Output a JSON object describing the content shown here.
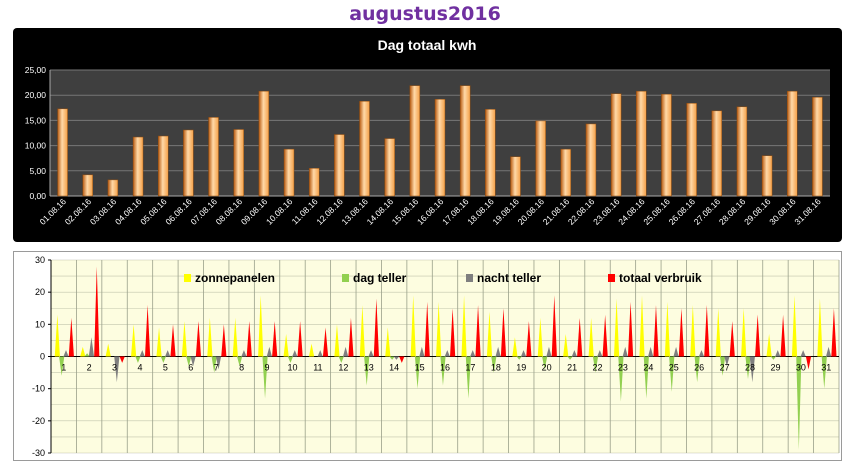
{
  "page": {
    "title": "augustus2016"
  },
  "chart_data": [
    {
      "type": "bar",
      "title": "Dag totaal kwh",
      "categories": [
        "01.08.16",
        "02.08.16",
        "03.08.16",
        "04.08.16",
        "05.08.16",
        "06.08.16",
        "07.08.16",
        "08.08.16",
        "09.08.16",
        "10.08.16",
        "11.08.16",
        "12.08.16",
        "13.08.16",
        "14.08.16",
        "15.08.16",
        "16.08.16",
        "17.08.16",
        "18.08.16",
        "19.08.16",
        "20.08.16",
        "21.08.16",
        "22.08.16",
        "23.08.16",
        "24.08.16",
        "25.08.16",
        "26.08.16",
        "27.08.16",
        "28.08.16",
        "29.08.16",
        "30.08.16",
        "31.08.16"
      ],
      "values": [
        17.3,
        4.2,
        3.2,
        11.7,
        11.9,
        13.1,
        15.6,
        13.2,
        20.8,
        9.3,
        5.5,
        12.2,
        18.8,
        11.4,
        21.9,
        19.2,
        21.9,
        17.2,
        7.8,
        14.9,
        9.3,
        14.3,
        20.3,
        20.8,
        20.2,
        18.4,
        16.9,
        17.7,
        8.0,
        20.8,
        19.6
      ],
      "ylim": [
        0,
        25
      ],
      "yticks": [
        "0,00",
        "5,00",
        "10,00",
        "15,00",
        "20,00",
        "25,00"
      ],
      "ytick_values": [
        0,
        5,
        10,
        15,
        20,
        25
      ],
      "grid": true,
      "colors": {
        "bar": "#f4a048",
        "bar_dark": "#b85a10",
        "bar_light": "#ffd9a8",
        "plot_bg": "#3f3f3f",
        "frame_bg": "#000000",
        "grid": "#777777",
        "text": "#ffffff"
      }
    },
    {
      "type": "bar",
      "categories": [
        "1",
        "2",
        "3",
        "4",
        "5",
        "6",
        "7",
        "8",
        "9",
        "10",
        "11",
        "12",
        "13",
        "14",
        "15",
        "16",
        "17",
        "18",
        "19",
        "20",
        "21",
        "22",
        "23",
        "24",
        "25",
        "26",
        "27",
        "28",
        "29",
        "30",
        "31"
      ],
      "series": [
        {
          "name": "zonnepanelen",
          "color": "#ffff00",
          "values": [
            13,
            3,
            4,
            10,
            9,
            11,
            12,
            12,
            19,
            7,
            4,
            10,
            16,
            9,
            19,
            17,
            19,
            14,
            6,
            12,
            7,
            12,
            18,
            19,
            17,
            16,
            15,
            15,
            7,
            19,
            18
          ]
        },
        {
          "name": "dag teller",
          "color": "#92d050",
          "values": [
            -6,
            1,
            0,
            -2,
            -2,
            -3,
            -5,
            -3,
            -13,
            -2,
            0,
            -2,
            -9,
            -1,
            -10,
            -9,
            -13,
            -5,
            -1,
            -4,
            -1,
            -5,
            -14,
            -13,
            -11,
            -8,
            -6,
            -7,
            -1,
            -29,
            -10
          ]
        },
        {
          "name": "nacht teller",
          "color": "#7f7f7f",
          "values": [
            2,
            6,
            -8,
            2,
            2,
            -3,
            -4,
            2,
            3,
            2,
            2,
            3,
            2,
            -1,
            3,
            2,
            2,
            3,
            2,
            3,
            2,
            2,
            3,
            3,
            3,
            2,
            -3,
            -8,
            2,
            2,
            3
          ]
        },
        {
          "name": "totaal verbruik",
          "color": "#ff0000",
          "values": [
            12,
            28,
            -2,
            16,
            10,
            11,
            10,
            11,
            11,
            11,
            9,
            12,
            18,
            -2,
            17,
            15,
            16,
            15,
            11,
            19,
            12,
            13,
            17,
            16,
            15,
            16,
            11,
            13,
            13,
            -4,
            15
          ]
        }
      ],
      "ylim": [
        -30,
        30
      ],
      "yticks": [
        "-30",
        "-20",
        "-10",
        "0",
        "10",
        "20",
        "30"
      ],
      "ytick_values": [
        -30,
        -20,
        -10,
        0,
        10,
        20,
        30
      ],
      "legend": "top",
      "grid": true,
      "colors": {
        "plot_bg": "#fdfde0",
        "grid": "#9aa08a",
        "axis": "#000000"
      }
    }
  ]
}
